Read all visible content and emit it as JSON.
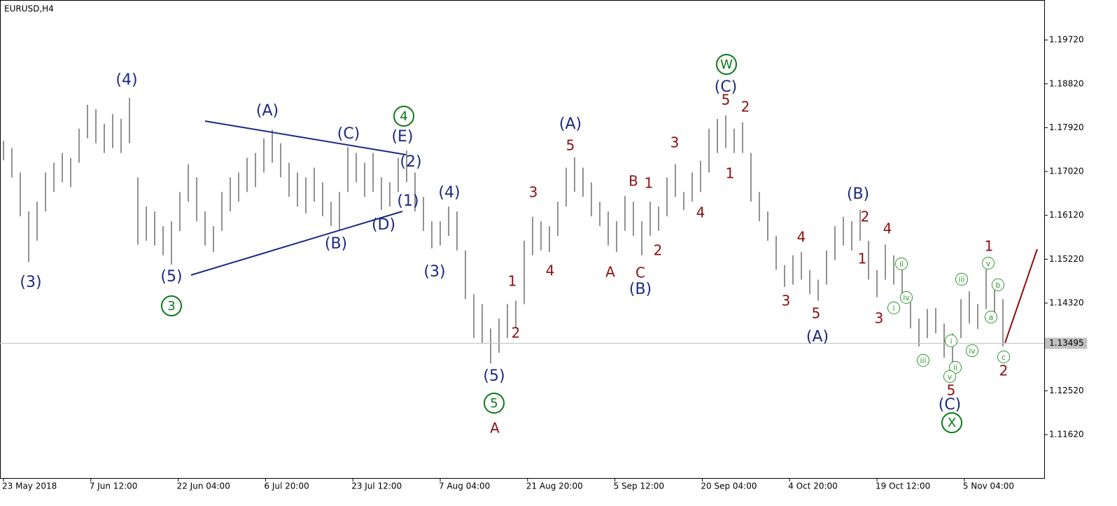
{
  "chart_data": {
    "type": "bar",
    "title": "EURUSD,H4",
    "color": "#6e6e6e",
    "ylim": [
      1.1073,
      1.2054
    ],
    "yticks": [
      {
        "value": 1.1972,
        "label": "1.19720"
      },
      {
        "value": 1.1882,
        "label": "1.18820"
      },
      {
        "value": 1.1792,
        "label": "1.17920"
      },
      {
        "value": 1.1702,
        "label": "1.17020"
      },
      {
        "value": 1.1612,
        "label": "1.16120"
      },
      {
        "value": 1.1522,
        "label": "1.15220"
      },
      {
        "value": 1.1432,
        "label": "1.14320"
      },
      {
        "value": 1.1252,
        "label": "1.12520"
      },
      {
        "value": 1.1162,
        "label": "1.11620"
      }
    ],
    "xticks": [
      {
        "value": 0,
        "label": "23 May 2018"
      },
      {
        "value": 10.4,
        "label": "7 Jun 12:00"
      },
      {
        "value": 20.8,
        "label": "22 Jun 04:00"
      },
      {
        "value": 31.2,
        "label": "6 Jul 20:00"
      },
      {
        "value": 41.6,
        "label": "23 Jul 12:00"
      },
      {
        "value": 52,
        "label": "7 Aug 04:00"
      },
      {
        "value": 62.4,
        "label": "21 Aug 20:00"
      },
      {
        "value": 72.8,
        "label": "5 Sep 12:00"
      },
      {
        "value": 83.2,
        "label": "20 Sep 04:00"
      },
      {
        "value": 93.6,
        "label": "4 Oct 20:00"
      },
      {
        "value": 104,
        "label": "19 Oct 12:00"
      },
      {
        "value": 114.4,
        "label": "5 Nov 04:00"
      }
    ],
    "last_price": 1.13495,
    "high": [
      1.1765,
      1.175,
      1.17,
      1.162,
      1.164,
      1.17,
      1.172,
      1.174,
      1.173,
      1.179,
      1.1839,
      1.183,
      1.18,
      1.182,
      1.181,
      1.1853,
      1.169,
      1.163,
      1.162,
      1.159,
      1.16,
      1.166,
      1.1717,
      1.169,
      1.162,
      1.159,
      1.166,
      1.169,
      1.17,
      1.173,
      1.174,
      1.177,
      1.1788,
      1.176,
      1.172,
      1.17,
      1.169,
      1.171,
      1.168,
      1.164,
      1.166,
      1.1752,
      1.174,
      1.172,
      1.174,
      1.169,
      1.168,
      1.173,
      1.1745,
      1.17,
      1.165,
      1.16,
      1.16,
      1.163,
      1.162,
      1.154,
      1.145,
      1.143,
      1.138,
      1.14,
      1.143,
      1.1437,
      1.156,
      1.1609,
      1.16,
      1.159,
      1.164,
      1.171,
      1.1731,
      1.171,
      1.168,
      1.164,
      1.162,
      1.16,
      1.1652,
      1.164,
      1.16,
      1.164,
      1.163,
      1.169,
      1.1717,
      1.166,
      1.17,
      1.1724,
      1.179,
      1.181,
      1.1817,
      1.179,
      1.1803,
      1.174,
      1.166,
      1.162,
      1.157,
      1.151,
      1.153,
      1.1537,
      1.15,
      1.148,
      1.154,
      1.159,
      1.1609,
      1.16,
      1.1623,
      1.156,
      1.15,
      1.1552,
      1.153,
      1.15,
      1.144,
      1.14,
      1.142,
      1.1422,
      1.139,
      1.137,
      1.144,
      1.1456,
      1.143,
      1.1501,
      1.147,
      1.144
    ],
    "low": [
      1.1725,
      1.169,
      1.161,
      1.1516,
      1.156,
      1.162,
      1.166,
      1.168,
      1.167,
      1.172,
      1.177,
      1.176,
      1.174,
      1.175,
      1.174,
      1.176,
      1.1552,
      1.156,
      1.155,
      1.153,
      1.1511,
      1.158,
      1.164,
      1.16,
      1.155,
      1.1537,
      1.158,
      1.162,
      1.164,
      1.166,
      1.167,
      1.17,
      1.172,
      1.169,
      1.165,
      1.163,
      1.1616,
      1.164,
      1.161,
      1.159,
      1.158,
      1.166,
      1.168,
      1.165,
      1.166,
      1.1623,
      1.163,
      1.166,
      1.168,
      1.162,
      1.158,
      1.1544,
      1.155,
      1.157,
      1.154,
      1.144,
      1.136,
      1.135,
      1.1308,
      1.133,
      1.136,
      1.138,
      1.143,
      1.153,
      1.154,
      1.1537,
      1.157,
      1.163,
      1.166,
      1.165,
      1.161,
      1.159,
      1.155,
      1.1537,
      1.158,
      1.157,
      1.153,
      1.157,
      1.158,
      1.161,
      1.165,
      1.1623,
      1.164,
      1.166,
      1.17,
      1.174,
      1.175,
      1.174,
      1.174,
      1.164,
      1.16,
      1.156,
      1.15,
      1.1465,
      1.147,
      1.148,
      1.145,
      1.1437,
      1.147,
      1.152,
      1.155,
      1.154,
      1.156,
      1.148,
      1.1444,
      1.148,
      1.147,
      1.144,
      1.138,
      1.1343,
      1.136,
      1.137,
      1.132,
      1.1306,
      1.136,
      1.139,
      1.1379,
      1.142,
      1.141,
      1.1343
    ],
    "annotations": [
      {
        "text": "(4)",
        "color": "#1b2a80",
        "circled": false
      },
      {
        "text": "(3)",
        "color": "#1b2a80",
        "circled": false
      },
      {
        "text": "(5)",
        "color": "#1b2a80",
        "circled": false
      },
      {
        "text": "(A)",
        "color": "#1b2a80",
        "circled": false
      },
      {
        "text": "(C)",
        "color": "#1b2a80",
        "circled": false
      },
      {
        "text": "(E)",
        "color": "#1b2a80",
        "circled": false
      },
      {
        "text": "(2)",
        "color": "#1b2a80",
        "circled": false
      },
      {
        "text": "(1)",
        "color": "#1b2a80",
        "circled": false
      },
      {
        "text": "(B)",
        "color": "#1b2a80",
        "circled": false
      },
      {
        "text": "(D)",
        "color": "#1b2a80",
        "circled": false
      },
      {
        "text": "(4)",
        "color": "#1b2a80",
        "circled": false
      },
      {
        "text": "(3)",
        "color": "#1b2a80",
        "circled": false
      },
      {
        "text": "(5)",
        "color": "#1b2a80",
        "circled": false
      },
      {
        "text": "(A)",
        "color": "#1b2a80",
        "circled": false
      },
      {
        "text": "(B)",
        "color": "#1b2a80",
        "circled": false
      },
      {
        "text": "(C)",
        "color": "#1b2a80",
        "circled": false
      },
      {
        "text": "(B)",
        "color": "#1b2a80",
        "circled": false
      },
      {
        "text": "(A)",
        "color": "#1b2a80",
        "circled": false
      },
      {
        "text": "(C)",
        "color": "#1b2a80",
        "circled": false
      },
      {
        "text": "3",
        "color": "#0b7a16",
        "circled": true
      },
      {
        "text": "4",
        "color": "#0b7a16",
        "circled": true
      },
      {
        "text": "5",
        "color": "#0b7a16",
        "circled": true
      },
      {
        "text": "W",
        "color": "#0b7a16",
        "circled": true
      },
      {
        "text": "X",
        "color": "#0b7a16",
        "circled": true
      },
      {
        "text": "A",
        "color": "#8b1010",
        "circled": false
      },
      {
        "text": "1",
        "color": "#8b1010",
        "circled": false
      },
      {
        "text": "2",
        "color": "#8b1010",
        "circled": false
      },
      {
        "text": "3",
        "color": "#8b1010",
        "circled": false
      },
      {
        "text": "4",
        "color": "#8b1010",
        "circled": false
      },
      {
        "text": "5",
        "color": "#8b1010",
        "circled": false
      },
      {
        "text": "A",
        "color": "#8b1010",
        "circled": false
      },
      {
        "text": "B",
        "color": "#8b1010",
        "circled": false
      },
      {
        "text": "1",
        "color": "#8b1010",
        "circled": false
      },
      {
        "text": "C",
        "color": "#8b1010",
        "circled": false
      },
      {
        "text": "2",
        "color": "#8b1010",
        "circled": false
      },
      {
        "text": "3",
        "color": "#8b1010",
        "circled": false
      },
      {
        "text": "4",
        "color": "#8b1010",
        "circled": false
      },
      {
        "text": "5",
        "color": "#8b1010",
        "circled": false
      },
      {
        "text": "2",
        "color": "#8b1010",
        "circled": false
      },
      {
        "text": "1",
        "color": "#8b1010",
        "circled": false
      },
      {
        "text": "3",
        "color": "#8b1010",
        "circled": false
      },
      {
        "text": "4",
        "color": "#8b1010",
        "circled": false
      },
      {
        "text": "5",
        "color": "#8b1010",
        "circled": false
      },
      {
        "text": "2",
        "color": "#8b1010",
        "circled": false
      },
      {
        "text": "1",
        "color": "#8b1010",
        "circled": false
      },
      {
        "text": "4",
        "color": "#8b1010",
        "circled": false
      },
      {
        "text": "3",
        "color": "#8b1010",
        "circled": false
      },
      {
        "text": "5",
        "color": "#8b1010",
        "circled": false
      },
      {
        "text": "1",
        "color": "#8b1010",
        "circled": false
      },
      {
        "text": "2",
        "color": "#8b1010",
        "circled": false
      },
      {
        "text": "ii",
        "color": "#2e9a2e",
        "circled": true
      },
      {
        "text": "i",
        "color": "#2e9a2e",
        "circled": true
      },
      {
        "text": "iv",
        "color": "#2e9a2e",
        "circled": true
      },
      {
        "text": "iii",
        "color": "#2e9a2e",
        "circled": true
      },
      {
        "text": "i",
        "color": "#2e9a2e",
        "circled": true
      },
      {
        "text": "ii",
        "color": "#2e9a2e",
        "circled": true
      },
      {
        "text": "v",
        "color": "#2e9a2e",
        "circled": true
      },
      {
        "text": "iii",
        "color": "#2e9a2e",
        "circled": true
      },
      {
        "text": "iv",
        "color": "#2e9a2e",
        "circled": true
      },
      {
        "text": "v",
        "color": "#2e9a2e",
        "circled": true
      },
      {
        "text": "b",
        "color": "#2e9a2e",
        "circled": true
      },
      {
        "text": "a",
        "color": "#2e9a2e",
        "circled": true
      },
      {
        "text": "c",
        "color": "#2e9a2e",
        "circled": true
      }
    ]
  }
}
